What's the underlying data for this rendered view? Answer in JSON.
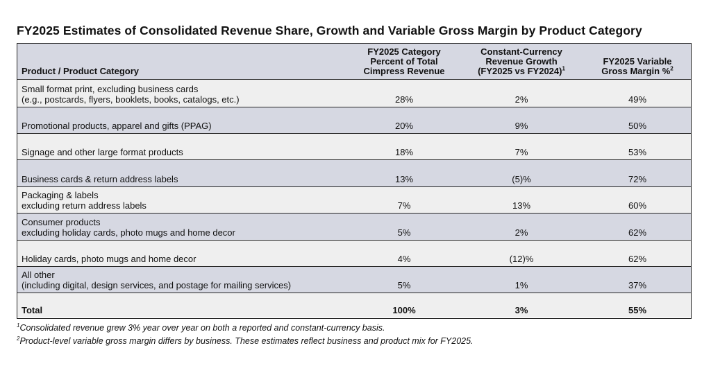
{
  "title": "FY2025 Estimates of Consolidated Revenue Share, Growth and Variable Gross Margin by Product Category",
  "headers": {
    "category": "Product / Product Category",
    "share_lines": [
      "FY2025 Category",
      "Percent of Total",
      "Cimpress Revenue"
    ],
    "growth_lines": [
      "Constant-Currency",
      "Revenue Growth",
      "(FY2025 vs FY2024)"
    ],
    "growth_sup": "1",
    "margin_lines": [
      "FY2025 Variable",
      "Gross Margin %"
    ],
    "margin_sup": "2"
  },
  "rows": [
    {
      "line1": "Small format print, excluding business cards",
      "line2": "(e.g., postcards, flyers, booklets, books, catalogs, etc.)",
      "share": "28%",
      "growth": "2%",
      "margin": "49%"
    },
    {
      "line1": "Promotional products, apparel and gifts (PPAG)",
      "line2": "",
      "share": "20%",
      "growth": "9%",
      "margin": "50%"
    },
    {
      "line1": "Signage and other large format products",
      "line2": "",
      "share": "18%",
      "growth": "7%",
      "margin": "53%"
    },
    {
      "line1": "Business cards & return address labels",
      "line2": "",
      "share": "13%",
      "growth": "(5)%",
      "margin": "72%"
    },
    {
      "line1": "Packaging & labels",
      "line2": "excluding return address labels",
      "share": "7%",
      "growth": "13%",
      "margin": "60%"
    },
    {
      "line1": "Consumer products",
      "line2": "excluding holiday cards, photo mugs and home decor",
      "share": "5%",
      "growth": "2%",
      "margin": "62%"
    },
    {
      "line1": "Holiday cards, photo mugs and home decor",
      "line2": "",
      "share": "4%",
      "growth": "(12)%",
      "margin": "62%"
    },
    {
      "line1": "All other",
      "line2": "(including digital, design services, and postage for mailing services)",
      "share": "5%",
      "growth": "1%",
      "margin": "37%"
    }
  ],
  "total": {
    "label": "Total",
    "share": "100%",
    "growth": "3%",
    "margin": "55%"
  },
  "footnotes": [
    {
      "num": "1",
      "text": "Consolidated revenue grew 3% year over year on both a reported and constant-currency basis."
    },
    {
      "num": "2",
      "text": "Product-level variable gross margin differs by business. These estimates reflect business and product mix for FY2025."
    }
  ]
}
